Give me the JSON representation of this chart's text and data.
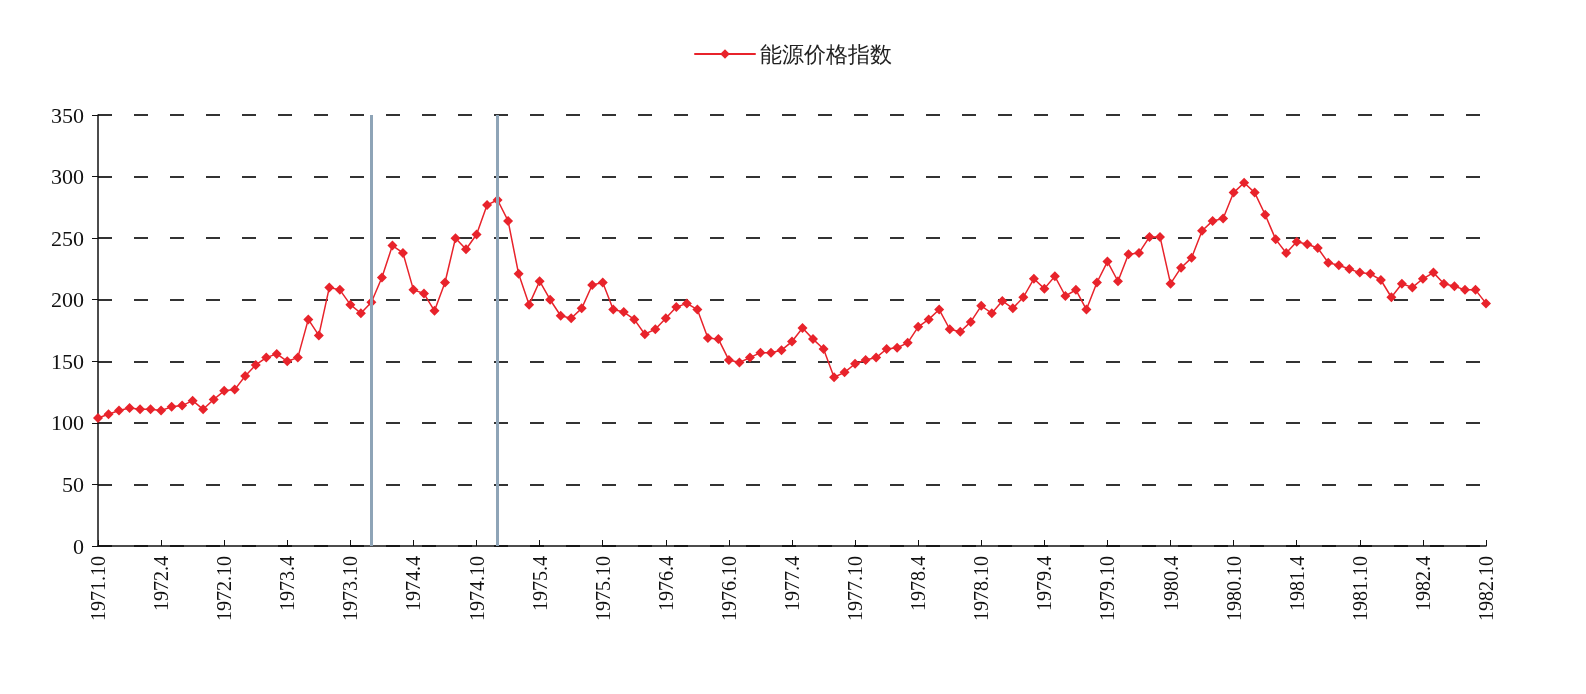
{
  "chart_data": {
    "type": "line",
    "legend": "top",
    "grid": "y",
    "marker": "diamond",
    "line_style": "solid",
    "x": [
      "1971-10",
      "1971-11",
      "1971-12",
      "1972-01",
      "1972-02",
      "1972-03",
      "1972-04",
      "1972-05",
      "1972-06",
      "1972-07",
      "1972-08",
      "1972-09",
      "1972-10",
      "1972-11",
      "1972-12",
      "1973-01",
      "1973-02",
      "1973-03",
      "1973-04",
      "1973-05",
      "1973-06",
      "1973-07",
      "1973-08",
      "1973-09",
      "1973-10",
      "1973-11",
      "1973-12",
      "1974-01",
      "1974-02",
      "1974-03",
      "1974-04",
      "1974-05",
      "1974-06",
      "1974-07",
      "1974-08",
      "1974-09",
      "1974-10",
      "1974-11",
      "1974-12",
      "1975-01",
      "1975-02",
      "1975-03",
      "1975-04",
      "1975-05",
      "1975-06",
      "1975-07",
      "1975-08",
      "1975-09",
      "1975-10",
      "1975-11",
      "1975-12",
      "1976-01",
      "1976-02",
      "1976-03",
      "1976-04",
      "1976-05",
      "1976-06",
      "1976-07",
      "1976-08",
      "1976-09",
      "1976-10",
      "1976-11",
      "1976-12",
      "1977-01",
      "1977-02",
      "1977-03",
      "1977-04",
      "1977-05",
      "1977-06",
      "1977-07",
      "1977-08",
      "1977-09",
      "1977-10",
      "1977-11",
      "1977-12",
      "1978-01",
      "1978-02",
      "1978-03",
      "1978-04",
      "1978-05",
      "1978-06",
      "1978-07",
      "1978-08",
      "1978-09",
      "1978-10",
      "1978-11",
      "1978-12",
      "1979-01",
      "1979-02",
      "1979-03",
      "1979-04",
      "1979-05",
      "1979-06",
      "1979-07",
      "1979-08",
      "1979-09",
      "1979-10",
      "1979-11",
      "1979-12",
      "1980-01",
      "1980-02",
      "1980-03",
      "1980-04",
      "1980-05",
      "1980-06",
      "1980-07",
      "1980-08",
      "1980-09",
      "1980-10",
      "1980-11",
      "1980-12",
      "1981-01",
      "1981-02",
      "1981-03",
      "1981-04",
      "1981-05",
      "1981-06",
      "1981-07",
      "1981-08",
      "1981-09",
      "1981-10",
      "1981-11",
      "1981-12",
      "1982-01",
      "1982-02",
      "1982-03",
      "1982-04",
      "1982-05",
      "1982-06",
      "1982-07",
      "1982-08",
      "1982-09",
      "1982-10"
    ],
    "series": [
      {
        "name": "能源价格指数",
        "color": "#e8232b",
        "values": [
          104,
          107,
          110,
          112,
          111,
          111,
          110,
          113,
          114,
          118,
          111,
          119,
          126,
          127,
          138,
          147,
          153,
          156,
          150,
          153,
          184,
          171,
          210,
          208,
          196,
          189,
          198,
          218,
          244,
          238,
          208,
          205,
          191,
          214,
          250,
          241,
          253,
          277,
          281,
          264,
          221,
          196,
          215,
          200,
          187,
          185,
          193,
          212,
          214,
          192,
          190,
          184,
          172,
          176,
          185,
          194,
          197,
          192,
          169,
          168,
          151,
          149,
          153,
          157,
          157,
          159,
          166,
          177,
          168,
          160,
          137,
          141,
          148,
          151,
          153,
          160,
          161,
          165,
          178,
          184,
          192,
          176,
          174,
          182,
          195,
          189,
          199,
          193,
          202,
          217,
          209,
          219,
          203,
          208,
          192,
          214,
          231,
          215,
          237,
          238,
          251,
          251,
          213,
          226,
          234,
          256,
          264,
          266,
          287,
          295,
          287,
          269,
          249,
          238,
          247,
          245,
          242,
          230,
          228,
          225,
          222,
          221,
          216,
          202,
          213,
          210,
          217,
          222,
          213,
          211,
          208,
          208,
          197
        ]
      }
    ],
    "xlim": [
      "1971-10",
      "1982-10"
    ],
    "xticks": [
      {
        "value": "1971-10",
        "label": "1971.10"
      },
      {
        "value": "1972-04",
        "label": "1972.4"
      },
      {
        "value": "1972-10",
        "label": "1972.10"
      },
      {
        "value": "1973-04",
        "label": "1973.4"
      },
      {
        "value": "1973-10",
        "label": "1973.10"
      },
      {
        "value": "1974-04",
        "label": "1974.4"
      },
      {
        "value": "1974-10",
        "label": "1974.10"
      },
      {
        "value": "1975-04",
        "label": "1975.4"
      },
      {
        "value": "1975-10",
        "label": "1975.10"
      },
      {
        "value": "1976-04",
        "label": "1976.4"
      },
      {
        "value": "1976-10",
        "label": "1976.10"
      },
      {
        "value": "1977-04",
        "label": "1977.4"
      },
      {
        "value": "1977-10",
        "label": "1977.10"
      },
      {
        "value": "1978-04",
        "label": "1978.4"
      },
      {
        "value": "1978-10",
        "label": "1978.10"
      },
      {
        "value": "1979-04",
        "label": "1979.4"
      },
      {
        "value": "1979-10",
        "label": "1979.10"
      },
      {
        "value": "1980-04",
        "label": "1980.4"
      },
      {
        "value": "1980-10",
        "label": "1980.10"
      },
      {
        "value": "1981-04",
        "label": "1981.4"
      },
      {
        "value": "1981-10",
        "label": "1981.10"
      },
      {
        "value": "1982-04",
        "label": "1982.4"
      },
      {
        "value": "1982-10",
        "label": "1982.10"
      }
    ],
    "ylim": [
      0,
      350
    ],
    "yticks": [
      0,
      50,
      100,
      150,
      200,
      250,
      300,
      350
    ],
    "ref_lines": [
      {
        "axis": "x",
        "value": "1973-12",
        "color": "#8ea4b7"
      },
      {
        "axis": "x",
        "value": "1974-12",
        "color": "#8ea4b7"
      }
    ]
  }
}
